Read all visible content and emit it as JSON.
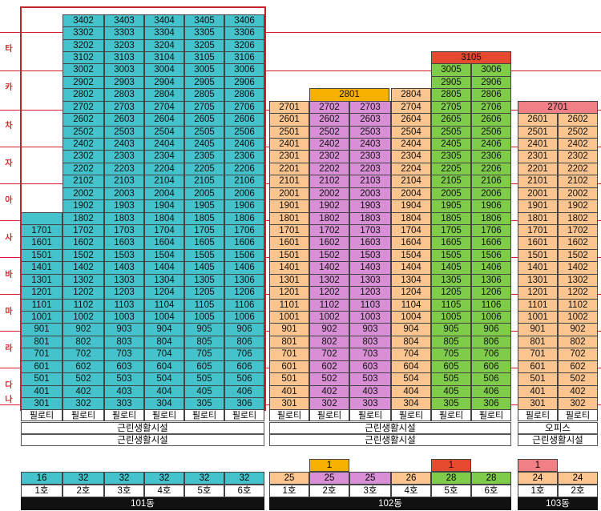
{
  "side_labels": [
    "타",
    "카",
    "차",
    "자",
    "아",
    "사",
    "바",
    "마",
    "라",
    "다",
    "나"
  ],
  "pilotis_label": "필로티",
  "facility_label": "근린생활시설",
  "office_label": "오피스",
  "colors": {
    "teal": "#44c3cc",
    "orange": "#fcc58f",
    "pink": "#d98fd6",
    "green": "#7fcc4a",
    "gold": "#f5b000",
    "red": "#e64a2e",
    "salmon": "#f07f86",
    "frame": "#c0272d",
    "guide": "#d8202c"
  },
  "buildings": [
    {
      "name": "101동",
      "units": [
        {
          "ho": "1호",
          "total": "16",
          "color": "teal",
          "top": 18,
          "bottom": 3,
          "extra": "",
          "extra_color": ""
        },
        {
          "ho": "2호",
          "total": "32",
          "color": "teal",
          "top": 34,
          "bottom": 3,
          "extra": "",
          "extra_color": ""
        },
        {
          "ho": "3호",
          "total": "32",
          "color": "teal",
          "top": 34,
          "bottom": 3,
          "extra": "",
          "extra_color": ""
        },
        {
          "ho": "4호",
          "total": "32",
          "color": "teal",
          "top": 34,
          "bottom": 3,
          "extra": "",
          "extra_color": ""
        },
        {
          "ho": "5호",
          "total": "32",
          "color": "teal",
          "top": 34,
          "bottom": 3,
          "extra": "",
          "extra_color": ""
        },
        {
          "ho": "6호",
          "total": "32",
          "color": "teal",
          "top": 34,
          "bottom": 3,
          "extra": "",
          "extra_color": ""
        }
      ]
    },
    {
      "name": "102동",
      "units": [
        {
          "ho": "1호",
          "total": "25",
          "color": "orange",
          "top": 27,
          "bottom": 3,
          "extra": "",
          "extra_color": ""
        },
        {
          "ho": "2호",
          "total": "25",
          "color": "pink",
          "top": 27,
          "bottom": 3,
          "extra": "1",
          "extra_color": "gold"
        },
        {
          "ho": "3호",
          "total": "25",
          "color": "pink",
          "top": 27,
          "bottom": 3,
          "extra": "",
          "extra_color": ""
        },
        {
          "ho": "4호",
          "total": "26",
          "color": "orange",
          "top": 28,
          "bottom": 3,
          "extra": "",
          "extra_color": ""
        },
        {
          "ho": "5호",
          "total": "28",
          "color": "green",
          "top": 30,
          "bottom": 3,
          "extra": "1",
          "extra_color": "red"
        },
        {
          "ho": "6호",
          "total": "28",
          "color": "green",
          "top": 30,
          "bottom": 3,
          "extra": "",
          "extra_color": ""
        }
      ]
    },
    {
      "name": "103동",
      "units": [
        {
          "ho": "1호",
          "total": "24",
          "color": "peach",
          "top": 26,
          "bottom": 3,
          "extra": "1",
          "extra_color": "salmon"
        },
        {
          "ho": "2호",
          "total": "24",
          "color": "peach",
          "top": 26,
          "bottom": 3,
          "extra": "",
          "extra_color": ""
        }
      ]
    }
  ],
  "special_units": [
    {
      "label": "3402",
      "col": 1
    },
    {
      "label": "3403",
      "col": 2
    },
    {
      "label": "3404",
      "col": 3
    },
    {
      "label": "3405",
      "col": 4
    },
    {
      "label": "3406",
      "col": 5
    },
    {
      "label": "2801",
      "span": "102-1-2"
    },
    {
      "label": "2804",
      "col": "102-4"
    },
    {
      "label": "3105",
      "span": "102-5-6"
    },
    {
      "label": "2701",
      "span": "103-1-2"
    }
  ]
}
